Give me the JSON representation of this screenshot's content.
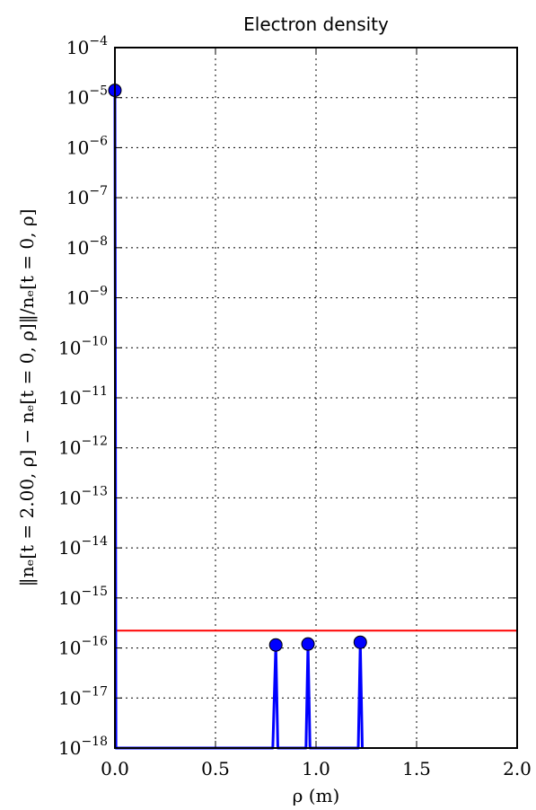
{
  "chart_data": {
    "type": "line",
    "title": "Electron density",
    "xlabel": "ρ (m)",
    "ylabel": "‖nₑ[t = 2.00, ρ] − nₑ[t = 0, ρ]‖/nₑ[t = 0, ρ]",
    "xlim": [
      0.0,
      2.0
    ],
    "ylim": [
      1e-18,
      0.0001
    ],
    "yscale": "log",
    "grid": true,
    "x_ticks": [
      {
        "value": 0.0,
        "label": "0.0"
      },
      {
        "value": 0.5,
        "label": "0.5"
      },
      {
        "value": 1.0,
        "label": "1.0"
      },
      {
        "value": 1.5,
        "label": "1.5"
      },
      {
        "value": 2.0,
        "label": "2.0"
      }
    ],
    "y_ticks": [
      {
        "value": 1e-18,
        "base": "10",
        "exp": "−18"
      },
      {
        "value": 1e-17,
        "base": "10",
        "exp": "−17"
      },
      {
        "value": 1e-16,
        "base": "10",
        "exp": "−16"
      },
      {
        "value": 1e-15,
        "base": "10",
        "exp": "−15"
      },
      {
        "value": 1e-14,
        "base": "10",
        "exp": "−14"
      },
      {
        "value": 1e-13,
        "base": "10",
        "exp": "−13"
      },
      {
        "value": 1e-12,
        "base": "10",
        "exp": "−12"
      },
      {
        "value": 1e-11,
        "base": "10",
        "exp": "−11"
      },
      {
        "value": 1e-10,
        "base": "10",
        "exp": "−10"
      },
      {
        "value": 1e-09,
        "base": "10",
        "exp": "−9"
      },
      {
        "value": 1e-08,
        "base": "10",
        "exp": "−8"
      },
      {
        "value": 1e-07,
        "base": "10",
        "exp": "−7"
      },
      {
        "value": 1e-06,
        "base": "10",
        "exp": "−6"
      },
      {
        "value": 1e-05,
        "base": "10",
        "exp": "−5"
      },
      {
        "value": 0.0001,
        "base": "10",
        "exp": "−4"
      }
    ],
    "series": [
      {
        "color": "#0000ff",
        "marker": "circle",
        "points": [
          {
            "x": 0.0,
            "y": 1.4e-05,
            "marker": true
          },
          {
            "x": 0.005,
            "y": 1e-18,
            "marker": false
          },
          {
            "x": 0.785,
            "y": 1e-18,
            "marker": false
          },
          {
            "x": 0.8,
            "y": 1.15e-16,
            "marker": true
          },
          {
            "x": 0.81,
            "y": 1e-18,
            "marker": false
          },
          {
            "x": 0.95,
            "y": 1e-18,
            "marker": false
          },
          {
            "x": 0.96,
            "y": 1.2e-16,
            "marker": true
          },
          {
            "x": 0.97,
            "y": 1e-18,
            "marker": false
          },
          {
            "x": 1.21,
            "y": 1e-18,
            "marker": false
          },
          {
            "x": 1.22,
            "y": 1.3e-16,
            "marker": true
          },
          {
            "x": 1.23,
            "y": 1e-18,
            "marker": false
          }
        ]
      }
    ],
    "reference_line": {
      "y": 2.22e-16,
      "color": "#ff0000"
    }
  }
}
